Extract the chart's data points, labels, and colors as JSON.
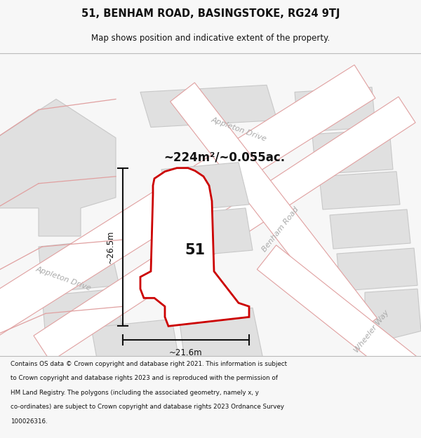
{
  "title": "51, BENHAM ROAD, BASINGSTOKE, RG24 9TJ",
  "subtitle": "Map shows position and indicative extent of the property.",
  "area_text": "~224m²/~0.055ac.",
  "dim_width": "~21.6m",
  "dim_height": "~26.5m",
  "plot_number": "51",
  "footer_lines": [
    "Contains OS data © Crown copyright and database right 2021. This information is subject",
    "to Crown copyright and database rights 2023 and is reproduced with the permission of",
    "HM Land Registry. The polygons (including the associated geometry, namely x, y",
    "co-ordinates) are subject to Crown copyright and database rights 2023 Ordnance Survey",
    "100026316."
  ],
  "bg_color": "#f7f7f7",
  "map_bg": "#f2f2f2",
  "block_fill": "#e0e0e0",
  "block_edge": "#c8c8c8",
  "road_fill": "#ffffff",
  "road_edge": "#e0a0a0",
  "plot_stroke": "#cc0000",
  "plot_fill": "#ffffff",
  "dim_color": "#111111",
  "road_label_color": "#aaaaaa",
  "title_color": "#111111",
  "footer_color": "#111111"
}
